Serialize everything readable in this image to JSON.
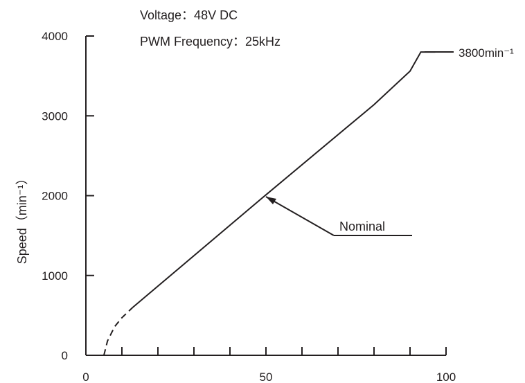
{
  "chart_data": {
    "type": "line",
    "ylabel": "Speed（min⁻¹）",
    "xlim": [
      0,
      100
    ],
    "ylim": [
      0,
      4000
    ],
    "x_ticks": [
      0,
      10,
      20,
      30,
      40,
      50,
      60,
      70,
      80,
      90,
      100
    ],
    "x_tick_labels": [
      "0",
      "50",
      "100"
    ],
    "y_ticks": [
      0,
      1000,
      2000,
      3000,
      4000
    ],
    "y_tick_labels": [
      "0",
      "1000",
      "2000",
      "3000",
      "4000"
    ],
    "grid": false,
    "annotations": {
      "voltage": "Voltage：48V DC",
      "pwm": "PWM Frequency：25kHz",
      "max_speed": "3800min⁻¹",
      "nominal": "Nominal"
    },
    "nominal_point": {
      "x": 50,
      "y": 2010
    },
    "series": [
      {
        "line_style": "dashed",
        "points": [
          [
            5,
            0
          ],
          [
            6,
            180
          ],
          [
            8,
            360
          ],
          [
            10,
            470
          ],
          [
            13,
            600
          ]
        ]
      },
      {
        "line_style": "solid",
        "points": [
          [
            13,
            600
          ],
          [
            50,
            2010
          ],
          [
            80,
            3140
          ],
          [
            90,
            3560
          ],
          [
            93,
            3800
          ],
          [
            97,
            3800
          ]
        ]
      }
    ]
  }
}
